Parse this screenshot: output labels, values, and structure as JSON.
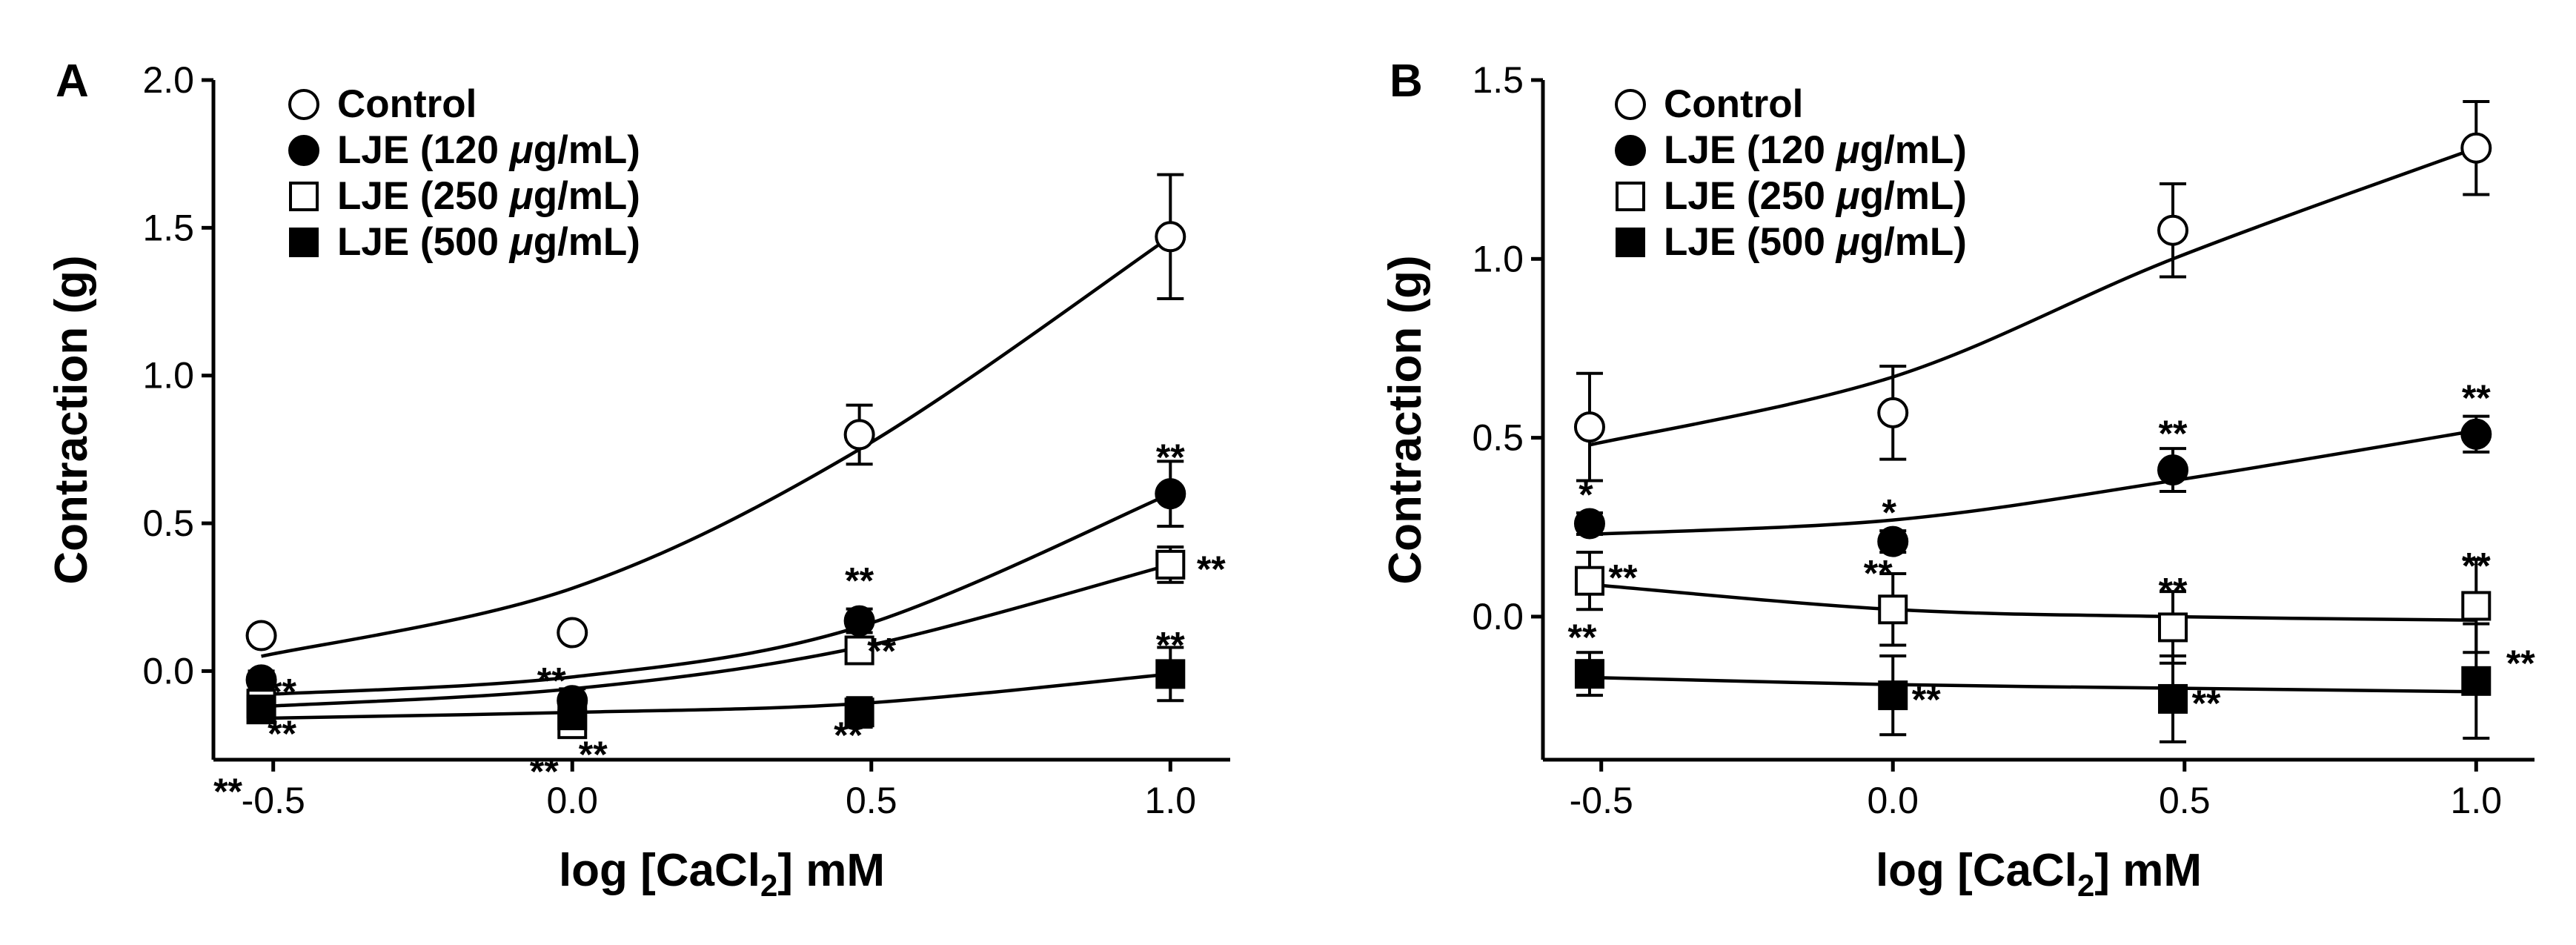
{
  "chart_data": [
    {
      "type": "scatter",
      "panel": "A",
      "xlabel_main": "log [CaCl",
      "xlabel_sub": "2",
      "xlabel_tail": "] mM",
      "ylabel": "Contraction (g)",
      "xlim": [
        -0.6,
        1.1
      ],
      "ylim": [
        -0.3,
        2.0
      ],
      "xticks": [
        -0.5,
        0.0,
        0.5,
        1.0
      ],
      "xtick_labels": [
        "-0.5",
        "0.0",
        "0.5",
        "1.0"
      ],
      "yticks": [
        0.0,
        0.5,
        1.0,
        1.5,
        2.0
      ],
      "ytick_labels": [
        "0.0",
        "0.5",
        "1.0",
        "1.5",
        "2.0"
      ],
      "legend_position": "top-left",
      "x": [
        -0.52,
        0.0,
        0.48,
        1.0
      ],
      "series": [
        {
          "name": "Control",
          "marker": "circle-open",
          "values": [
            0.12,
            0.13,
            0.8,
            1.47
          ],
          "err": [
            0.0,
            0.0,
            0.1,
            0.21
          ],
          "fit": [
            0.05,
            0.28,
            0.75,
            1.47
          ],
          "stars": [
            "",
            "",
            "",
            ""
          ]
        },
        {
          "name": "LJE (120 μg/mL)",
          "marker": "circle-filled",
          "values": [
            -0.03,
            -0.1,
            0.17,
            0.6
          ],
          "err": [
            0.03,
            0.04,
            0.04,
            0.11
          ],
          "fit": [
            -0.08,
            -0.02,
            0.15,
            0.6
          ],
          "stars": [
            "**",
            "**",
            "**",
            "**"
          ]
        },
        {
          "name": "LJE (250 μg/mL)",
          "marker": "square-open",
          "values": [
            -0.11,
            -0.18,
            0.07,
            0.36
          ],
          "err": [
            0.04,
            0.04,
            0.04,
            0.06
          ],
          "fit": [
            -0.12,
            -0.06,
            0.08,
            0.36
          ],
          "stars": [
            "**",
            "**",
            "**",
            "**"
          ]
        },
        {
          "name": "LJE (500 μg/mL)",
          "marker": "square-filled",
          "values": [
            -0.13,
            -0.15,
            -0.14,
            -0.01
          ],
          "err": [
            0.04,
            0.04,
            0.05,
            0.09
          ],
          "fit": [
            -0.16,
            -0.14,
            -0.11,
            -0.01
          ],
          "stars": [
            "**",
            "**",
            "**",
            "**"
          ]
        }
      ]
    },
    {
      "type": "scatter",
      "panel": "B",
      "xlabel_main": "log [CaCl",
      "xlabel_sub": "2",
      "xlabel_tail": "] mM",
      "ylabel": "Contraction (g)",
      "xlim": [
        -0.6,
        1.1
      ],
      "ylim": [
        -0.4,
        1.5
      ],
      "xticks": [
        -0.5,
        0.0,
        0.5,
        1.0
      ],
      "xtick_labels": [
        "-0.5",
        "0.0",
        "0.5",
        "1.0"
      ],
      "yticks": [
        0.0,
        0.5,
        1.0,
        1.5
      ],
      "ytick_labels": [
        "0.0",
        "0.5",
        "1.0",
        "1.5"
      ],
      "legend_position": "top-left",
      "x": [
        -0.52,
        0.0,
        0.48,
        1.0
      ],
      "series": [
        {
          "name": "Control",
          "marker": "circle-open",
          "values": [
            0.53,
            0.57,
            1.08,
            1.31
          ],
          "err": [
            0.15,
            0.13,
            0.13,
            0.13
          ],
          "fit": [
            0.48,
            0.67,
            1.0,
            1.31
          ],
          "stars": [
            "",
            "",
            "",
            ""
          ]
        },
        {
          "name": "LJE (120 μg/mL)",
          "marker": "circle-filled",
          "values": [
            0.26,
            0.21,
            0.41,
            0.51
          ],
          "err": [
            0.03,
            0.03,
            0.06,
            0.05
          ],
          "fit": [
            0.23,
            0.27,
            0.38,
            0.52
          ],
          "stars": [
            "*",
            "*",
            "**",
            "**"
          ]
        },
        {
          "name": "LJE (250 μg/mL)",
          "marker": "square-open",
          "values": [
            0.1,
            0.02,
            -0.03,
            0.03
          ],
          "err": [
            0.08,
            0.1,
            0.1,
            0.13
          ],
          "fit": [
            0.09,
            0.02,
            0.0,
            -0.01
          ],
          "stars": [
            "**",
            "**",
            "**",
            "**"
          ]
        },
        {
          "name": "LJE (500 μg/mL)",
          "marker": "square-filled",
          "values": [
            -0.16,
            -0.22,
            -0.23,
            -0.18
          ],
          "err": [
            0.06,
            0.11,
            0.12,
            0.16
          ],
          "fit": [
            -0.17,
            -0.19,
            -0.2,
            -0.21
          ],
          "stars": [
            "**",
            "**",
            "**",
            "**"
          ]
        }
      ]
    }
  ]
}
